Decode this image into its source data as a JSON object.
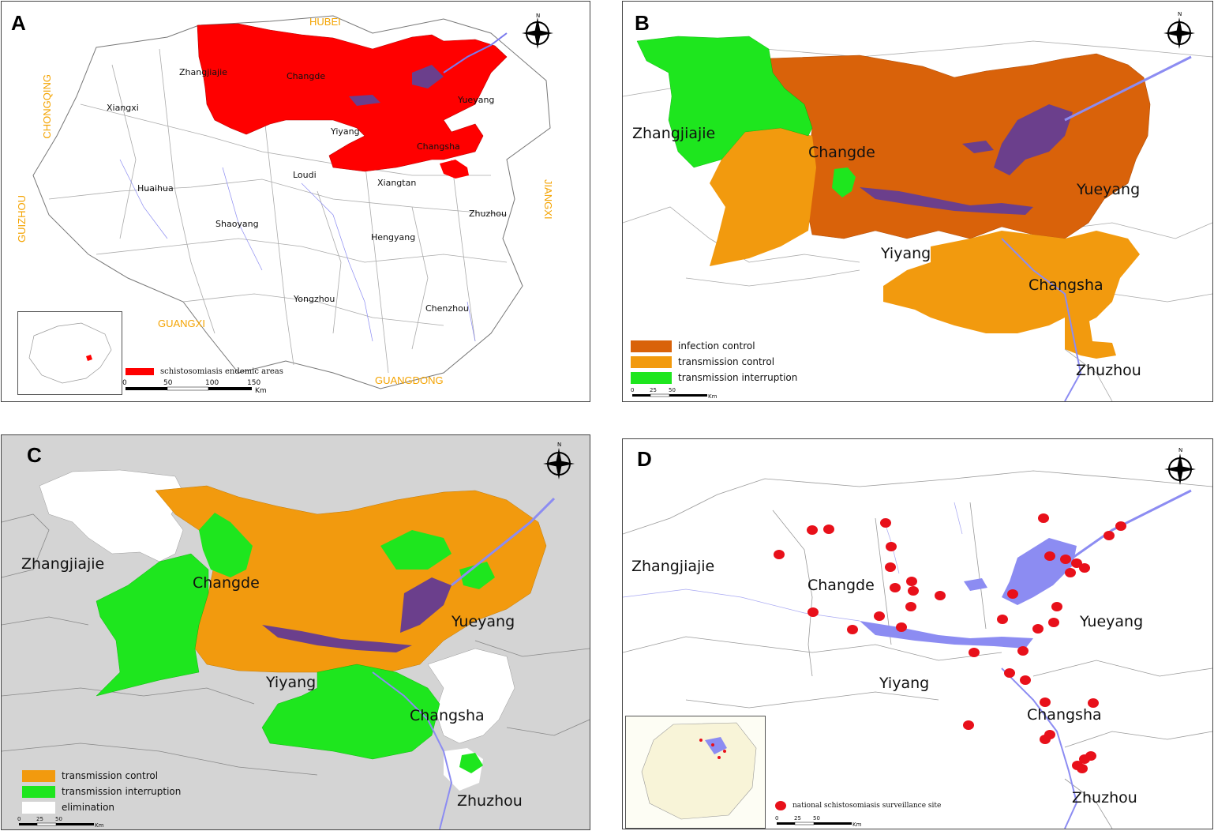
{
  "panels": {
    "a": {
      "label": "A",
      "cities": [
        "Zhangjiajie",
        "Changde",
        "Xiangxi",
        "Yueyang",
        "Yiyang",
        "Changsha",
        "Loudi",
        "Xiangtan",
        "Huaihua",
        "Zhuzhou",
        "Shaoyang",
        "Hengyang",
        "Yongzhou",
        "Chenzhou"
      ],
      "provinces": {
        "hubei": "HUBEI",
        "chongqing": "CHONGQING",
        "guizhou": "GUIZHOU",
        "jiangxi": "JIANGXI",
        "guangxi": "GUANGXI",
        "guangdong": "GUANGDONG"
      },
      "legend": "schistosomiasis endemic areas",
      "scale": [
        "0",
        "50",
        "100",
        "150"
      ],
      "scale_unit": "Km",
      "compass_n": "N"
    },
    "b": {
      "label": "B",
      "cities": [
        "Zhangjiajie",
        "Changde",
        "Yueyang",
        "Yiyang",
        "Changsha",
        "Zhuzhou"
      ],
      "legend": [
        "infection control",
        "transmission control",
        "transmission interruption"
      ],
      "scale": [
        "0",
        "25",
        "50"
      ],
      "scale_unit": "Km",
      "compass_n": "N"
    },
    "c": {
      "label": "C",
      "cities": [
        "Zhangjiajie",
        "Changde",
        "Yueyang",
        "Yiyang",
        "Changsha",
        "Zhuzhou"
      ],
      "legend": [
        "transmission control",
        "transmission interruption",
        "elimination"
      ],
      "scale": [
        "0",
        "25",
        "50"
      ],
      "scale_unit": "Km",
      "compass_n": "N"
    },
    "d": {
      "label": "D",
      "cities": [
        "Zhangjiajie",
        "Changde",
        "Yueyang",
        "Yiyang",
        "Changsha",
        "Zhuzhou"
      ],
      "legend": "national schistosomiasis surveillance site",
      "scale": [
        "0",
        "25",
        "50"
      ],
      "scale_unit": "Km",
      "compass_n": "N"
    }
  },
  "colors": {
    "endemic_red": "#ff0000",
    "infection_control": "#d9620a",
    "transmission_control": "#f29a0e",
    "transmission_interruption": "#1ee61e",
    "elimination": "#ffffff",
    "lake": "#6b3f8c",
    "water": "#8c8cf2",
    "site_red": "#e8101a",
    "background_c": "#d4d4d4"
  }
}
